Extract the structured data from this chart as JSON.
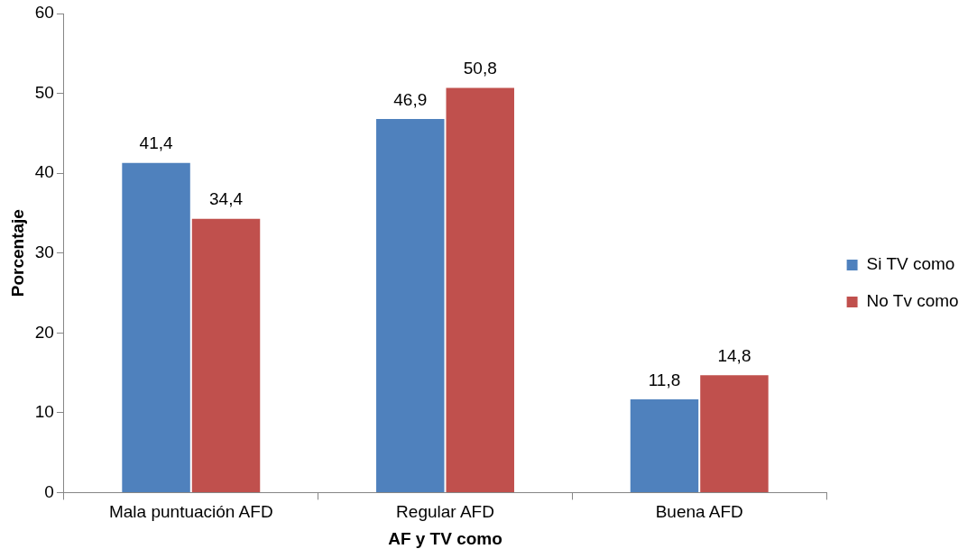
{
  "chart_data": {
    "type": "bar",
    "xlabel": "AF y TV como",
    "ylabel": "Porcentaje",
    "categories": [
      "Mala puntuación AFD",
      "Regular AFD",
      "Buena AFD"
    ],
    "series": [
      {
        "name": "Si TV como",
        "color": "#4f81bd",
        "values": [
          41.4,
          46.9,
          11.8
        ],
        "value_labels": [
          "41,4",
          "46,9",
          "11,8"
        ]
      },
      {
        "name": "No Tv como",
        "color": "#c0504d",
        "values": [
          34.4,
          50.8,
          14.8
        ],
        "value_labels": [
          "34,4",
          "50,8",
          "14,8"
        ]
      }
    ],
    "ylim": [
      0,
      60
    ],
    "yticks": [
      0,
      10,
      20,
      30,
      40,
      50,
      60
    ],
    "grid": false,
    "legend": "right"
  }
}
